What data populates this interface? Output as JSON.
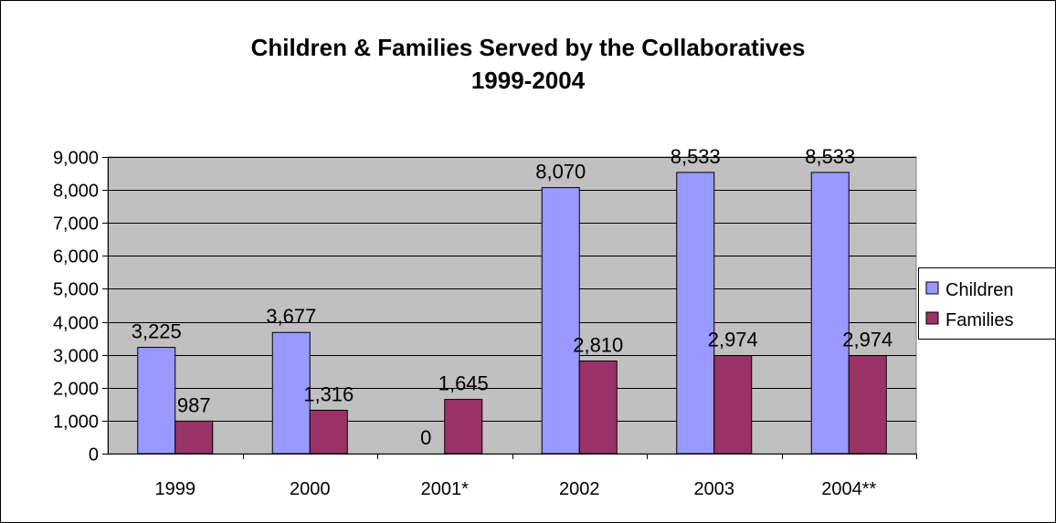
{
  "chart_data": {
    "type": "bar",
    "title": "Children & Families Served by the Collaboratives",
    "subtitle": "1999-2004",
    "categories": [
      "1999",
      "2000",
      "2001*",
      "2002",
      "2003",
      "2004**"
    ],
    "series": [
      {
        "name": "Children",
        "values": [
          3225,
          3677,
          0,
          8070,
          8533,
          8533
        ],
        "labels": [
          "3,225",
          "3,677",
          "0",
          "8,070",
          "8,533",
          "8,533"
        ],
        "color": "#9999ff"
      },
      {
        "name": "Families",
        "values": [
          987,
          1316,
          1645,
          2810,
          2974,
          2974
        ],
        "labels": [
          "987",
          "1,316",
          "1,645",
          "2,810",
          "2,974",
          "2,974"
        ],
        "color": "#993366"
      }
    ],
    "yticks": [
      "0",
      "1,000",
      "2,000",
      "3,000",
      "4,000",
      "5,000",
      "6,000",
      "7,000",
      "8,000",
      "9,000"
    ],
    "ylim": [
      0,
      9000
    ],
    "grid": true,
    "plot_background": "#c0c0c0",
    "legend_position": "right"
  }
}
